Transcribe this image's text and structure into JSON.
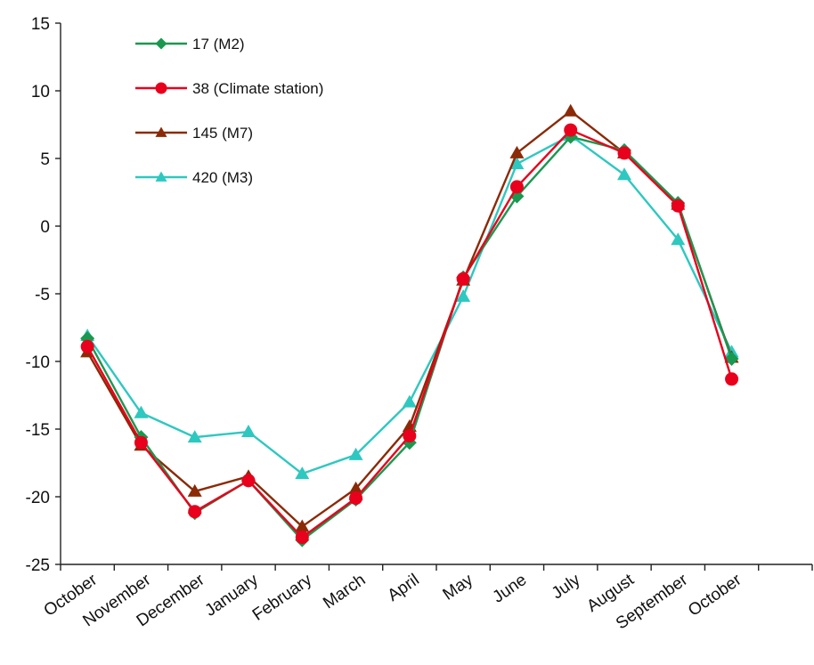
{
  "chart_data": {
    "type": "line",
    "categories": [
      "October",
      "November",
      "December",
      "January",
      "February",
      "March",
      "April",
      "May",
      "June",
      "July",
      "August",
      "September",
      "October"
    ],
    "ylim": [
      -25,
      15
    ],
    "yticks": [
      15,
      10,
      5,
      0,
      -5,
      -10,
      -15,
      -20,
      -25
    ],
    "grid": false,
    "legend_position": "top-left",
    "series": [
      {
        "name": "17 (M2)",
        "color": "#1a9850",
        "marker": "diamond",
        "values": [
          -8.3,
          -15.6,
          -21.2,
          -18.8,
          -23.2,
          -20.2,
          -16.0,
          -3.8,
          2.2,
          6.6,
          5.6,
          1.7,
          -9.8
        ]
      },
      {
        "name": "38 (Climate station)",
        "color": "#e8001c",
        "marker": "circle",
        "values": [
          -8.9,
          -16.0,
          -21.1,
          -18.8,
          -23.0,
          -20.1,
          -15.5,
          -3.9,
          2.9,
          7.1,
          5.4,
          1.5,
          -11.3
        ]
      },
      {
        "name": "145 (M7)",
        "color": "#8b2a06",
        "marker": "triangle",
        "values": [
          -9.3,
          -16.2,
          -19.6,
          -18.5,
          -22.2,
          -19.4,
          -14.8,
          -4.0,
          5.4,
          8.5,
          5.4,
          1.6,
          -9.7
        ]
      },
      {
        "name": "420 (M3)",
        "color": "#2ec8c0",
        "marker": "triangle",
        "values": [
          -8.1,
          -13.8,
          -15.6,
          -15.2,
          -18.3,
          -16.9,
          -13.0,
          -5.2,
          4.6,
          6.7,
          3.8,
          -1.0,
          -9.3
        ]
      }
    ]
  }
}
